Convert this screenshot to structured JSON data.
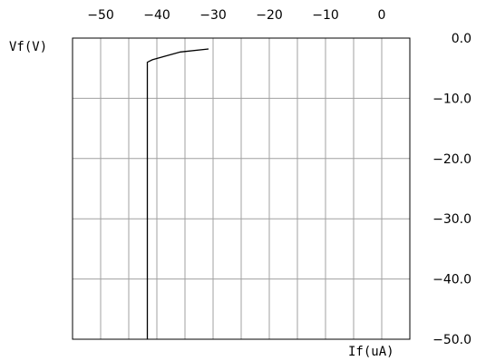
{
  "chart_data": {
    "type": "line",
    "xlabel": "If(uA)",
    "ylabel": "Vf(V)",
    "xlim": [
      -55,
      5
    ],
    "ylim": [
      -50,
      0
    ],
    "x_ticks": [
      -50,
      -40,
      -30,
      -20,
      -10,
      0
    ],
    "x_tick_labels": [
      "−50",
      "−40",
      "−30",
      "−20",
      "−10",
      "0"
    ],
    "y_ticks": [
      0,
      -10,
      -20,
      -30,
      -40,
      -50
    ],
    "y_tick_labels": [
      "0.0",
      "−10.0",
      "−20.0",
      "−30.0",
      "−40.0",
      "−50.0"
    ],
    "grid": true,
    "series": [
      {
        "x": [
          -41.7,
          -41.7,
          -40.8,
          -38.5,
          -35.8,
          -30.8
        ],
        "y": [
          -50,
          -4.0,
          -3.6,
          -3.0,
          -2.3,
          -1.8
        ]
      }
    ],
    "colors": {
      "line": "#000000",
      "grid": "#a0a0a0",
      "frame": "#000000"
    }
  }
}
